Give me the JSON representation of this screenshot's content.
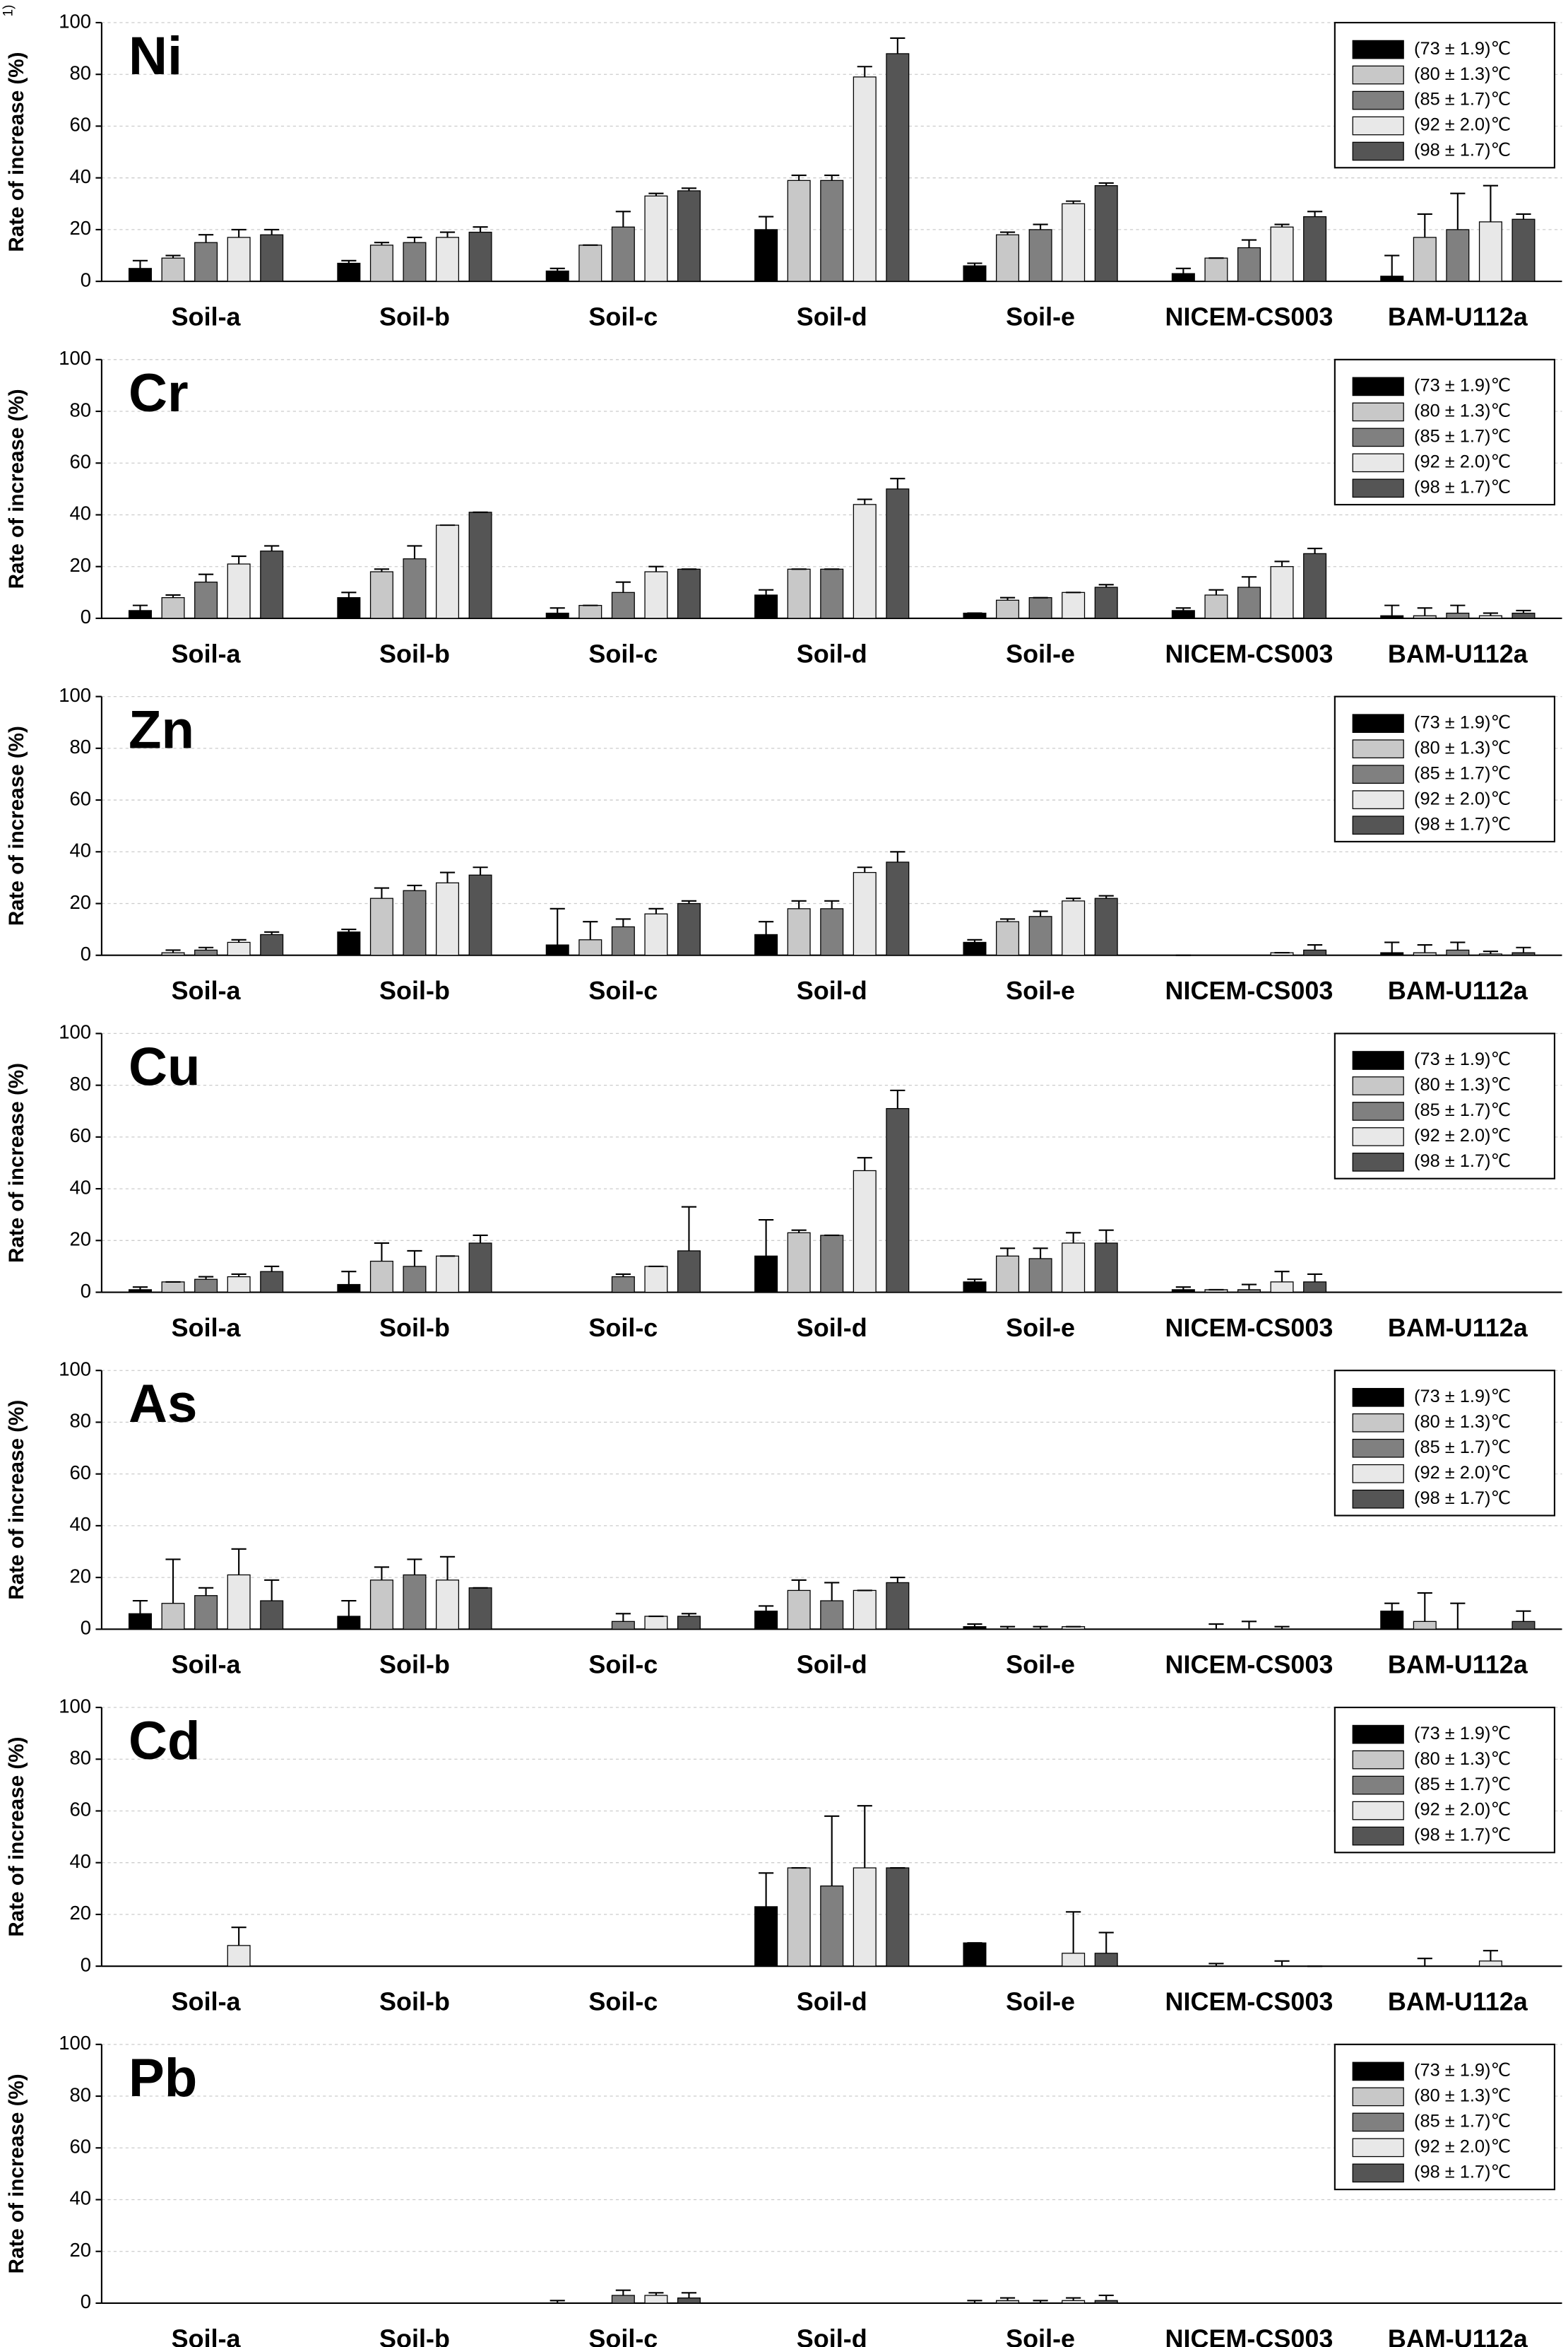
{
  "chart_data": [
    {
      "type": "bar",
      "title": "Ni",
      "y_label": "Rate of increase (%)",
      "y_label_note": "1)",
      "categories": [
        "Soil-a",
        "Soil-b",
        "Soil-c",
        "Soil-d",
        "Soil-e",
        "NICEM-CS003",
        "BAM-U112a"
      ],
      "ylim": [
        0,
        100
      ],
      "yticks": [
        0,
        20,
        40,
        60,
        80,
        100
      ],
      "grid": true,
      "series": [
        {
          "name": "(73 ±  1.9)℃",
          "color": "#000000",
          "values": [
            5,
            7,
            4,
            20,
            6,
            3,
            2
          ],
          "errors": [
            3,
            1,
            1,
            5,
            1,
            2,
            8
          ]
        },
        {
          "name": "(80 ±  1.3)℃",
          "color": "#c8c8c8",
          "values": [
            9,
            14,
            14,
            39,
            18,
            9,
            17
          ],
          "errors": [
            1,
            1,
            0,
            2,
            1,
            0,
            9
          ]
        },
        {
          "name": "(85 ±  1.7)℃",
          "color": "#808080",
          "values": [
            15,
            15,
            21,
            39,
            20,
            13,
            20
          ],
          "errors": [
            3,
            2,
            6,
            2,
            2,
            3,
            14
          ]
        },
        {
          "name": "(92 ±  2.0)℃",
          "color": "#e8e8e8",
          "values": [
            17,
            17,
            33,
            79,
            30,
            21,
            23
          ],
          "errors": [
            3,
            2,
            1,
            4,
            1,
            1,
            14
          ]
        },
        {
          "name": "(98 ±  1.7)℃",
          "color": "#555555",
          "values": [
            18,
            19,
            35,
            88,
            37,
            25,
            24
          ],
          "errors": [
            2,
            2,
            1,
            6,
            1,
            2,
            2
          ]
        }
      ]
    },
    {
      "type": "bar",
      "title": "Cr",
      "y_label": "Rate of increase (%)",
      "categories": [
        "Soil-a",
        "Soil-b",
        "Soil-c",
        "Soil-d",
        "Soil-e",
        "NICEM-CS003",
        "BAM-U112a"
      ],
      "ylim": [
        0,
        100
      ],
      "yticks": [
        0,
        20,
        40,
        60,
        80,
        100
      ],
      "grid": true,
      "series": [
        {
          "name": "(73 ±  1.9)℃",
          "color": "#000000",
          "values": [
            3,
            8,
            2,
            9,
            2,
            3,
            1
          ],
          "errors": [
            2,
            2,
            2,
            2,
            0,
            1,
            4
          ]
        },
        {
          "name": "(80 ±  1.3)℃",
          "color": "#c8c8c8",
          "values": [
            8,
            18,
            5,
            19,
            7,
            9,
            1
          ],
          "errors": [
            1,
            1,
            0,
            0,
            1,
            2,
            3
          ]
        },
        {
          "name": "(85 ±  1.7)℃",
          "color": "#808080",
          "values": [
            14,
            23,
            10,
            19,
            8,
            12,
            2
          ],
          "errors": [
            3,
            5,
            4,
            0,
            0,
            4,
            3
          ]
        },
        {
          "name": "(92 ±  2.0)℃",
          "color": "#e8e8e8",
          "values": [
            21,
            36,
            18,
            44,
            10,
            20,
            1
          ],
          "errors": [
            3,
            0,
            2,
            2,
            0,
            2,
            1
          ]
        },
        {
          "name": "(98 ±  1.7)℃",
          "color": "#555555",
          "values": [
            26,
            41,
            19,
            50,
            12,
            25,
            2
          ],
          "errors": [
            2,
            0,
            0,
            4,
            1,
            2,
            1
          ]
        }
      ]
    },
    {
      "type": "bar",
      "title": "Zn",
      "y_label": "Rate of increase (%)",
      "categories": [
        "Soil-a",
        "Soil-b",
        "Soil-c",
        "Soil-d",
        "Soil-e",
        "NICEM-CS003",
        "BAM-U112a"
      ],
      "ylim": [
        0,
        100
      ],
      "yticks": [
        0,
        20,
        40,
        60,
        80,
        100
      ],
      "grid": true,
      "series": [
        {
          "name": "(73 ±  1.9)℃",
          "color": "#000000",
          "values": [
            null,
            9,
            4,
            8,
            5,
            0,
            1
          ],
          "errors": [
            null,
            1,
            14,
            5,
            1,
            0,
            4
          ]
        },
        {
          "name": "(80 ±  1.3)℃",
          "color": "#c8c8c8",
          "values": [
            1,
            22,
            6,
            18,
            13,
            null,
            1
          ],
          "errors": [
            1,
            4,
            7,
            3,
            1,
            null,
            3
          ]
        },
        {
          "name": "(85 ±  1.7)℃",
          "color": "#808080",
          "values": [
            2,
            25,
            11,
            18,
            15,
            null,
            2
          ],
          "errors": [
            1,
            2,
            3,
            3,
            2,
            null,
            3
          ]
        },
        {
          "name": "(92 ±  2.0)℃",
          "color": "#e8e8e8",
          "values": [
            5,
            28,
            16,
            32,
            21,
            1,
            0.5
          ],
          "errors": [
            1,
            4,
            2,
            2,
            1,
            0,
            1
          ]
        },
        {
          "name": "(98 ±  1.7)℃",
          "color": "#555555",
          "values": [
            8,
            31,
            20,
            36,
            22,
            2,
            1
          ],
          "errors": [
            1,
            3,
            1,
            4,
            1,
            2,
            2
          ]
        }
      ]
    },
    {
      "type": "bar",
      "title": "Cu",
      "y_label": "Rate of increase (%)",
      "categories": [
        "Soil-a",
        "Soil-b",
        "Soil-c",
        "Soil-d",
        "Soil-e",
        "NICEM-CS003",
        "BAM-U112a"
      ],
      "ylim": [
        0,
        100
      ],
      "yticks": [
        0,
        20,
        40,
        60,
        80,
        100
      ],
      "grid": true,
      "series": [
        {
          "name": "(73 ±  1.9)℃",
          "color": "#000000",
          "values": [
            1,
            3,
            null,
            14,
            4,
            1,
            null
          ],
          "errors": [
            1,
            5,
            null,
            14,
            1,
            1,
            null
          ]
        },
        {
          "name": "(80 ±  1.3)℃",
          "color": "#c8c8c8",
          "values": [
            4,
            12,
            null,
            23,
            14,
            1,
            null
          ],
          "errors": [
            0,
            7,
            null,
            1,
            3,
            0,
            null
          ]
        },
        {
          "name": "(85 ±  1.7)℃",
          "color": "#808080",
          "values": [
            5,
            10,
            6,
            22,
            13,
            1,
            null
          ],
          "errors": [
            1,
            6,
            1,
            0,
            4,
            2,
            null
          ]
        },
        {
          "name": "(92 ±  2.0)℃",
          "color": "#e8e8e8",
          "values": [
            6,
            14,
            10,
            47,
            19,
            4,
            null
          ],
          "errors": [
            1,
            0,
            0,
            5,
            4,
            4,
            null
          ]
        },
        {
          "name": "(98 ±  1.7)℃",
          "color": "#555555",
          "values": [
            8,
            19,
            16,
            71,
            19,
            4,
            null
          ],
          "errors": [
            2,
            3,
            17,
            7,
            5,
            3,
            null
          ]
        }
      ]
    },
    {
      "type": "bar",
      "title": "As",
      "y_label": "Rate of increase (%)",
      "categories": [
        "Soil-a",
        "Soil-b",
        "Soil-c",
        "Soil-d",
        "Soil-e",
        "NICEM-CS003",
        "BAM-U112a"
      ],
      "ylim": [
        0,
        100
      ],
      "yticks": [
        0,
        20,
        40,
        60,
        80,
        100
      ],
      "grid": true,
      "series": [
        {
          "name": "(73 ±  1.9)℃",
          "color": "#000000",
          "values": [
            6,
            5,
            null,
            7,
            1,
            null,
            7
          ],
          "errors": [
            5,
            6,
            null,
            2,
            1,
            null,
            3
          ]
        },
        {
          "name": "(80 ±  1.3)℃",
          "color": "#c8c8c8",
          "values": [
            10,
            19,
            null,
            15,
            0,
            0,
            3
          ],
          "errors": [
            17,
            5,
            null,
            4,
            1,
            2,
            11
          ]
        },
        {
          "name": "(85 ±  1.7)℃",
          "color": "#808080",
          "values": [
            13,
            21,
            3,
            11,
            0,
            0,
            0
          ],
          "errors": [
            3,
            6,
            3,
            7,
            1,
            3,
            10
          ]
        },
        {
          "name": "(92 ±  2.0)℃",
          "color": "#e8e8e8",
          "values": [
            21,
            19,
            5,
            15,
            1,
            0,
            null
          ],
          "errors": [
            10,
            9,
            0,
            0,
            0,
            1,
            null
          ]
        },
        {
          "name": "(98 ±  1.7)℃",
          "color": "#555555",
          "values": [
            11,
            16,
            5,
            18,
            null,
            null,
            3
          ],
          "errors": [
            8,
            0,
            1,
            2,
            null,
            null,
            4
          ]
        }
      ]
    },
    {
      "type": "bar",
      "title": "Cd",
      "y_label": "Rate of increase (%)",
      "categories": [
        "Soil-a",
        "Soil-b",
        "Soil-c",
        "Soil-d",
        "Soil-e",
        "NICEM-CS003",
        "BAM-U112a"
      ],
      "ylim": [
        0,
        100
      ],
      "yticks": [
        0,
        20,
        40,
        60,
        80,
        100
      ],
      "grid": true,
      "series": [
        {
          "name": "(73 ±  1.9)℃",
          "color": "#000000",
          "values": [
            null,
            null,
            null,
            23,
            9,
            null,
            null
          ],
          "errors": [
            null,
            null,
            null,
            13,
            0,
            null,
            null
          ]
        },
        {
          "name": "(80 ±  1.3)℃",
          "color": "#c8c8c8",
          "values": [
            null,
            null,
            null,
            38,
            null,
            0,
            0
          ],
          "errors": [
            null,
            null,
            null,
            0,
            null,
            1,
            3
          ]
        },
        {
          "name": "(85 ±  1.7)℃",
          "color": "#808080",
          "values": [
            null,
            null,
            null,
            31,
            null,
            null,
            null
          ],
          "errors": [
            null,
            null,
            null,
            27,
            null,
            null,
            null
          ]
        },
        {
          "name": "(92 ±  2.0)℃",
          "color": "#e8e8e8",
          "values": [
            8,
            null,
            null,
            38,
            5,
            0,
            2
          ],
          "errors": [
            7,
            null,
            null,
            24,
            16,
            2,
            4
          ]
        },
        {
          "name": "(98 ±  1.7)℃",
          "color": "#555555",
          "values": [
            null,
            null,
            null,
            38,
            5,
            0,
            null
          ],
          "errors": [
            null,
            null,
            null,
            0,
            8,
            0,
            null
          ]
        }
      ]
    },
    {
      "type": "bar",
      "title": "Pb",
      "y_label": "Rate of increase (%)",
      "categories": [
        "Soil-a",
        "Soil-b",
        "Soil-c",
        "Soil-d",
        "Soil-e",
        "NICEM-CS003",
        "BAM-U112a"
      ],
      "ylim": [
        0,
        100
      ],
      "yticks": [
        0,
        20,
        40,
        60,
        80,
        100
      ],
      "grid": true,
      "series": [
        {
          "name": "(73 ±  1.9)℃",
          "color": "#000000",
          "values": [
            null,
            null,
            0,
            null,
            0,
            null,
            null
          ],
          "errors": [
            null,
            null,
            1,
            null,
            1,
            null,
            null
          ]
        },
        {
          "name": "(80 ±  1.3)℃",
          "color": "#c8c8c8",
          "values": [
            null,
            null,
            null,
            null,
            1,
            null,
            null
          ],
          "errors": [
            null,
            null,
            null,
            null,
            1,
            null,
            null
          ]
        },
        {
          "name": "(85 ±  1.7)℃",
          "color": "#808080",
          "values": [
            null,
            null,
            3,
            null,
            0,
            null,
            null
          ],
          "errors": [
            null,
            null,
            2,
            null,
            1,
            null,
            null
          ]
        },
        {
          "name": "(92 ±  2.0)℃",
          "color": "#e8e8e8",
          "values": [
            null,
            null,
            3,
            null,
            1,
            null,
            null
          ],
          "errors": [
            null,
            null,
            1,
            null,
            1,
            null,
            null
          ]
        },
        {
          "name": "(98 ±  1.7)℃",
          "color": "#555555",
          "values": [
            null,
            null,
            2,
            null,
            1,
            null,
            null
          ],
          "errors": [
            null,
            null,
            2,
            null,
            2,
            null,
            null
          ]
        }
      ]
    }
  ]
}
